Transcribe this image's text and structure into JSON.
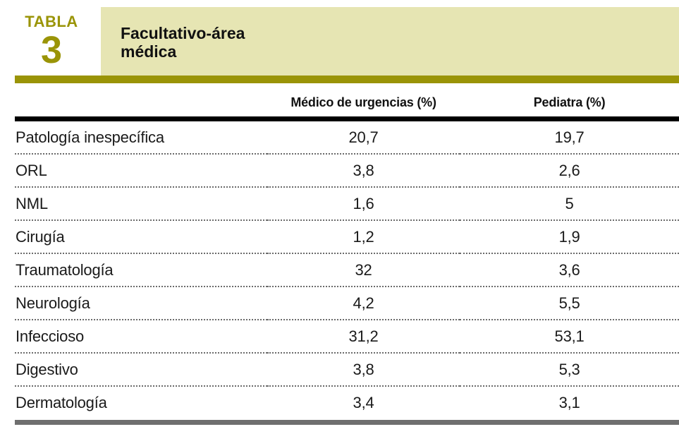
{
  "badge": {
    "label": "TABLA",
    "number": "3"
  },
  "title": "Facultativo-área médica",
  "table": {
    "columns": [
      "Médico de urgencias (%)",
      "Pediatra (%)"
    ],
    "rows": [
      {
        "label": "Patología inespecífica",
        "values": [
          "20,7",
          "19,7"
        ]
      },
      {
        "label": "ORL",
        "values": [
          "3,8",
          "2,6"
        ]
      },
      {
        "label": "NML",
        "values": [
          "1,6",
          "5"
        ]
      },
      {
        "label": "Cirugía",
        "values": [
          "1,2",
          "1,9"
        ]
      },
      {
        "label": "Traumatología",
        "values": [
          "32",
          "3,6"
        ]
      },
      {
        "label": "Neurología",
        "values": [
          "4,2",
          "5,5"
        ]
      },
      {
        "label": "Infeccioso",
        "values": [
          "31,2",
          "53,1"
        ]
      },
      {
        "label": "Digestivo",
        "values": [
          "3,8",
          "5,3"
        ]
      },
      {
        "label": "Dermatología",
        "values": [
          "3,4",
          "3,1"
        ]
      }
    ]
  },
  "colors": {
    "accent_olive": "#9a9407",
    "band_cream": "#e6e5b3",
    "header_rule_black": "#000000",
    "bottom_bar_gray": "#6f6f6f"
  },
  "chart_data": {
    "type": "table",
    "title": "Facultativo-área médica",
    "categories": [
      "Patología inespecífica",
      "ORL",
      "NML",
      "Cirugía",
      "Traumatología",
      "Neurología",
      "Infeccioso",
      "Digestivo",
      "Dermatología"
    ],
    "series": [
      {
        "name": "Médico de urgencias (%)",
        "values": [
          20.7,
          3.8,
          1.6,
          1.2,
          32,
          4.2,
          31.2,
          3.8,
          3.4
        ]
      },
      {
        "name": "Pediatra (%)",
        "values": [
          19.7,
          2.6,
          5,
          1.9,
          3.6,
          5.5,
          53.1,
          5.3,
          3.1
        ]
      }
    ]
  }
}
